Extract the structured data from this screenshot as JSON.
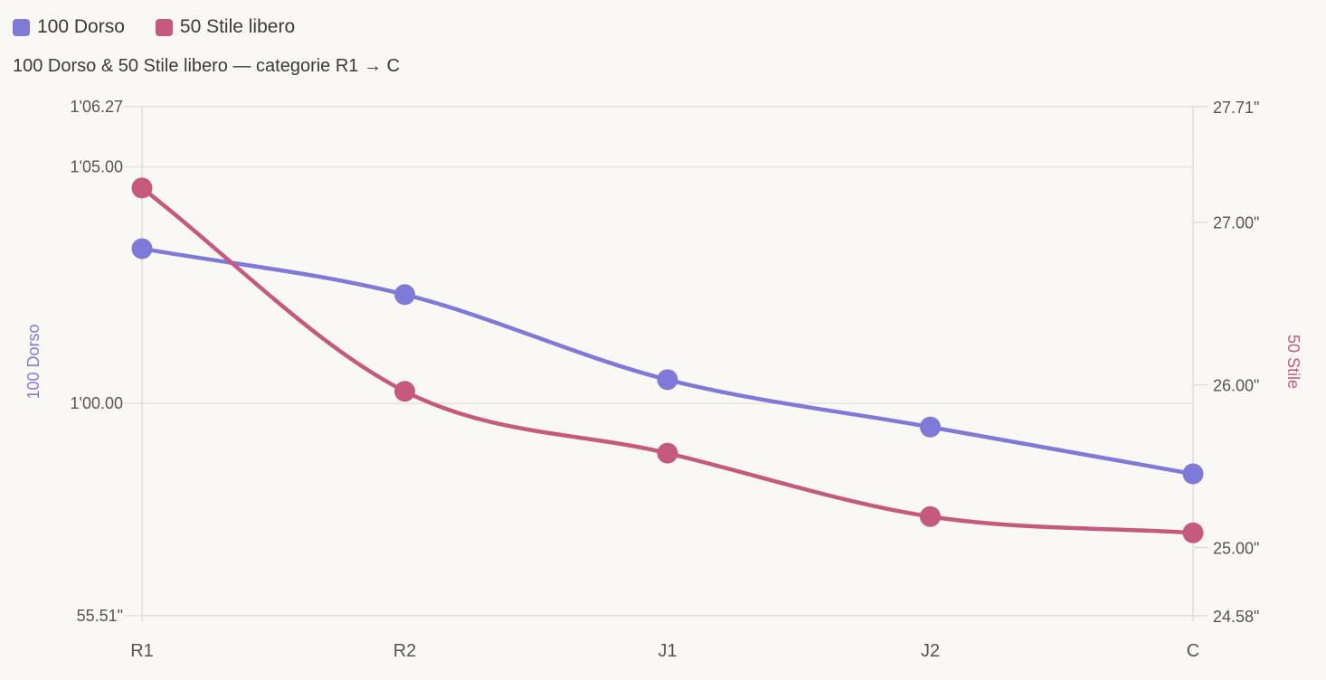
{
  "legend": [
    {
      "label": "100 Dorso",
      "color": "#7f79d8"
    },
    {
      "label": "50 Stile libero",
      "color": "#c45a7e"
    }
  ],
  "chart_data": {
    "type": "line",
    "title": "100 Dorso & 50 Stile libero — categorie R1 → C",
    "categories": [
      "R1",
      "R2",
      "J1",
      "J2",
      "C"
    ],
    "series": [
      {
        "name": "100 Dorso",
        "axis": "left",
        "color": "#7f79d8",
        "values": [
          63.27,
          62.3,
          60.5,
          59.5,
          58.51
        ]
      },
      {
        "name": "50 Stile libero",
        "axis": "right",
        "color": "#c45a7e",
        "values": [
          27.21,
          25.96,
          25.58,
          25.19,
          25.09
        ]
      }
    ],
    "y_left": {
      "label": "100 Dorso",
      "range": [
        55.51,
        66.27
      ],
      "ticks": [
        55.51,
        60.0,
        65.0,
        66.27
      ],
      "tick_labels": [
        "55.51\"",
        "1'00.00",
        "1'05.00",
        "1'06.27"
      ]
    },
    "y_right": {
      "label": "50 Stile",
      "range": [
        24.58,
        27.71
      ],
      "ticks": [
        24.58,
        25.0,
        26.0,
        27.0,
        27.71
      ],
      "tick_labels": [
        "24.58\"",
        "25.00\"",
        "26.00\"",
        "27.00\"",
        "27.71\""
      ]
    },
    "grid": true
  }
}
